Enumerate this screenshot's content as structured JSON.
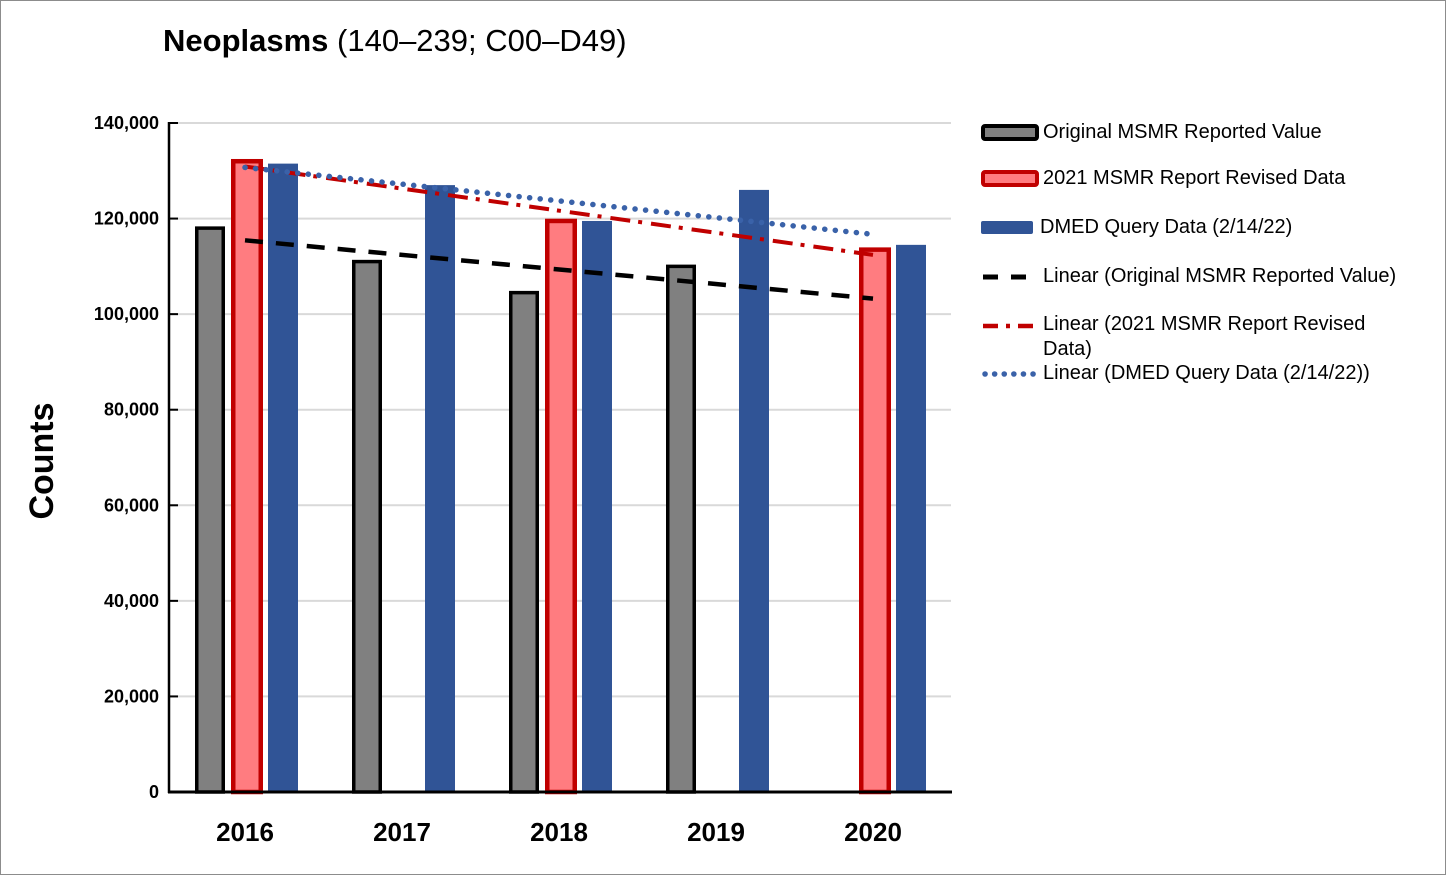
{
  "title": {
    "main": "Neoplasms",
    "sub": " (140–239; C00–D49)"
  },
  "chart_data": {
    "type": "bar",
    "title": "Neoplasms (140–239; C00–D49)",
    "xlabel": "",
    "ylabel": "Counts",
    "ylim": [
      0,
      140000
    ],
    "ytick_interval": 20000,
    "ytick_labels": [
      "0",
      "20,000",
      "40,000",
      "60,000",
      "80,000",
      "100,000",
      "120,000",
      "140,000"
    ],
    "grid": true,
    "legend_position": "right",
    "categories": [
      "2016",
      "2017",
      "2018",
      "2019",
      "2020"
    ],
    "series": [
      {
        "name": "Original MSMR Reported Value",
        "values": [
          118000,
          111000,
          104500,
          110000,
          null
        ],
        "fill_color": "#808080",
        "border_color": "#000000"
      },
      {
        "name": "2021 MSMR Report Revised Data",
        "values": [
          132000,
          null,
          119500,
          null,
          113500
        ],
        "fill_color": "#FF7C80",
        "border_color": "#C00000"
      },
      {
        "name": "DMED Query Data (2/14/22)",
        "values": [
          131500,
          127000,
          119500,
          126000,
          114500
        ],
        "fill_color": "#305496",
        "border_color": null
      }
    ],
    "trendlines": [
      {
        "name": "Linear (Original MSMR Reported Value)",
        "color": "#000000",
        "dash_style": "dashed",
        "start_value": 115450,
        "end_value": 103250
      },
      {
        "name": "Linear (2021 MSMR Report Revised Data)",
        "color": "#C00000",
        "dash_style": "dash-dot",
        "start_value": 130900,
        "end_value": 112400
      },
      {
        "name": "Linear (DMED Query Data (2/14/22))",
        "color": "#3A62A9",
        "dash_style": "dotted",
        "start_value": 130700,
        "end_value": 116700
      }
    ]
  },
  "legend": {
    "items": [
      {
        "label": "Original MSMR Reported Value",
        "marker": "box",
        "fill": "#808080",
        "border": "#000000"
      },
      {
        "label": "2021 MSMR Report Revised Data",
        "marker": "box",
        "fill": "#FF7C80",
        "border": "#C00000"
      },
      {
        "label": "DMED Query Data (2/14/22)",
        "marker": "box",
        "fill": "#305496",
        "border": null
      },
      {
        "label": "Linear (Original MSMR Reported Value)",
        "marker": "dashed-line",
        "color": "#000000"
      },
      {
        "label": "Linear (2021 MSMR Report Revised Data)",
        "marker": "dash-dot-line",
        "color": "#C00000"
      },
      {
        "label": "Linear (DMED Query Data (2/14/22))",
        "marker": "dotted-line",
        "color": "#3A62A9"
      }
    ]
  }
}
